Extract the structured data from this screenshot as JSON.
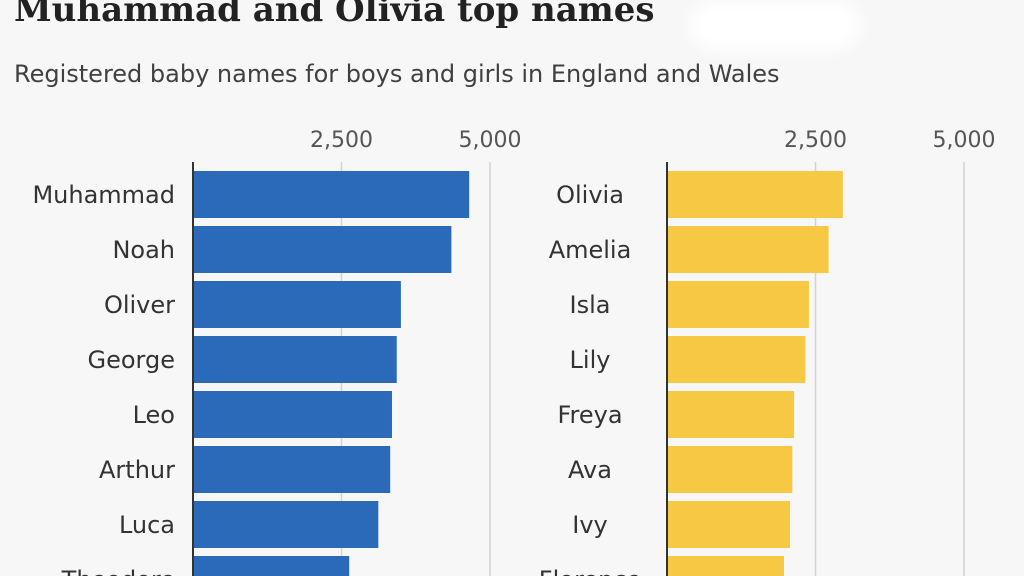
{
  "header": {
    "title": "Muhammad and Olivia top names",
    "subtitle": "Registered baby names for boys and girls in England and Wales"
  },
  "colors": {
    "boys": "#2a6ab8",
    "girls": "#f7c843",
    "gridline": "#d2d2d2",
    "axis": "#333333",
    "background": "#f7f7f7"
  },
  "chart_data": [
    {
      "type": "bar",
      "orientation": "horizontal",
      "categories": [
        "Muhammad",
        "Noah",
        "Oliver",
        "George",
        "Leo",
        "Arthur",
        "Luca",
        "Theodore"
      ],
      "values": [
        4650,
        4350,
        3500,
        3430,
        3350,
        3320,
        3120,
        2630
      ],
      "xlim": [
        0,
        5000
      ],
      "xticks": [
        2500,
        5000
      ],
      "xtick_labels": [
        "2,500",
        "5,000"
      ],
      "grid": true
    },
    {
      "type": "bar",
      "orientation": "horizontal",
      "categories": [
        "Olivia",
        "Amelia",
        "Isla",
        "Lily",
        "Freya",
        "Ava",
        "Ivy",
        "Florence"
      ],
      "values": [
        2960,
        2720,
        2390,
        2330,
        2140,
        2110,
        2070,
        1970
      ],
      "xlim": [
        0,
        5000
      ],
      "xticks": [
        2500,
        5000
      ],
      "xtick_labels": [
        "2,500",
        "5,000"
      ],
      "grid": true
    }
  ]
}
